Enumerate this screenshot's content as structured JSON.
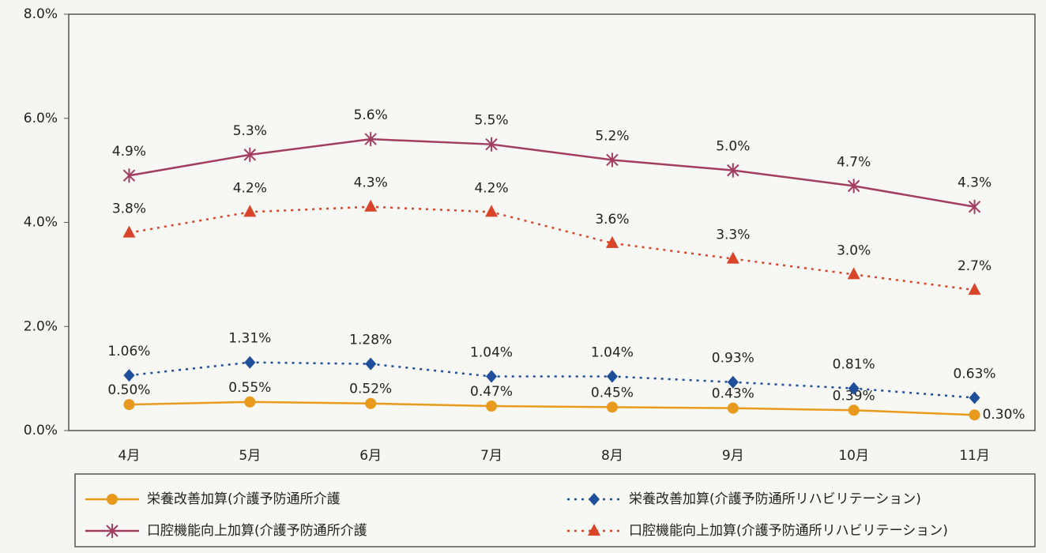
{
  "chart_data": {
    "type": "line",
    "categories": [
      "4月",
      "5月",
      "6月",
      "7月",
      "8月",
      "9月",
      "10月",
      "11月"
    ],
    "ylim": [
      0,
      8
    ],
    "yticks": [
      {
        "value": 0,
        "label": "0.0%"
      },
      {
        "value": 2,
        "label": "2.0%"
      },
      {
        "value": 4,
        "label": "4.0%"
      },
      {
        "value": 6,
        "label": "6.0%"
      },
      {
        "value": 8,
        "label": "8.0%"
      }
    ],
    "grid": false,
    "legend": "bottom",
    "series": [
      {
        "name": "栄養改善加算(介護予防通所介護",
        "color": "#e89a1c",
        "marker": "circle",
        "line": "solid",
        "values": [
          0.5,
          0.55,
          0.52,
          0.47,
          0.45,
          0.43,
          0.39,
          0.3
        ],
        "value_labels": [
          "0.50%",
          "0.55%",
          "0.52%",
          "0.47%",
          "0.45%",
          "0.43%",
          "0.39%",
          "0.30%"
        ]
      },
      {
        "name": "栄養改善加算(介護予防通所リハビリテーション)",
        "color": "#1f4e9a",
        "marker": "diamond",
        "line": "dotted",
        "values": [
          1.06,
          1.31,
          1.28,
          1.04,
          1.04,
          0.93,
          0.81,
          0.63
        ],
        "value_labels": [
          "1.06%",
          "1.31%",
          "1.28%",
          "1.04%",
          "1.04%",
          "0.93%",
          "0.81%",
          "0.63%"
        ]
      },
      {
        "name": "口腔機能向上加算(介護予防通所介護",
        "color": "#a23e5e",
        "marker": "asterisk",
        "line": "solid",
        "values": [
          4.9,
          5.3,
          5.6,
          5.5,
          5.2,
          5.0,
          4.7,
          4.3
        ],
        "value_labels": [
          "4.9%",
          "5.3%",
          "5.6%",
          "5.5%",
          "5.2%",
          "5.0%",
          "4.7%",
          "4.3%"
        ]
      },
      {
        "name": "口腔機能向上加算(介護予防通所リハビリテーション)",
        "color": "#d8452a",
        "marker": "triangle",
        "line": "dotted",
        "values": [
          3.8,
          4.2,
          4.3,
          4.2,
          3.6,
          3.3,
          3.0,
          2.7
        ],
        "value_labels": [
          "3.8%",
          "4.2%",
          "4.3%",
          "4.2%",
          "3.6%",
          "3.3%",
          "3.0%",
          "2.7%"
        ]
      }
    ]
  }
}
